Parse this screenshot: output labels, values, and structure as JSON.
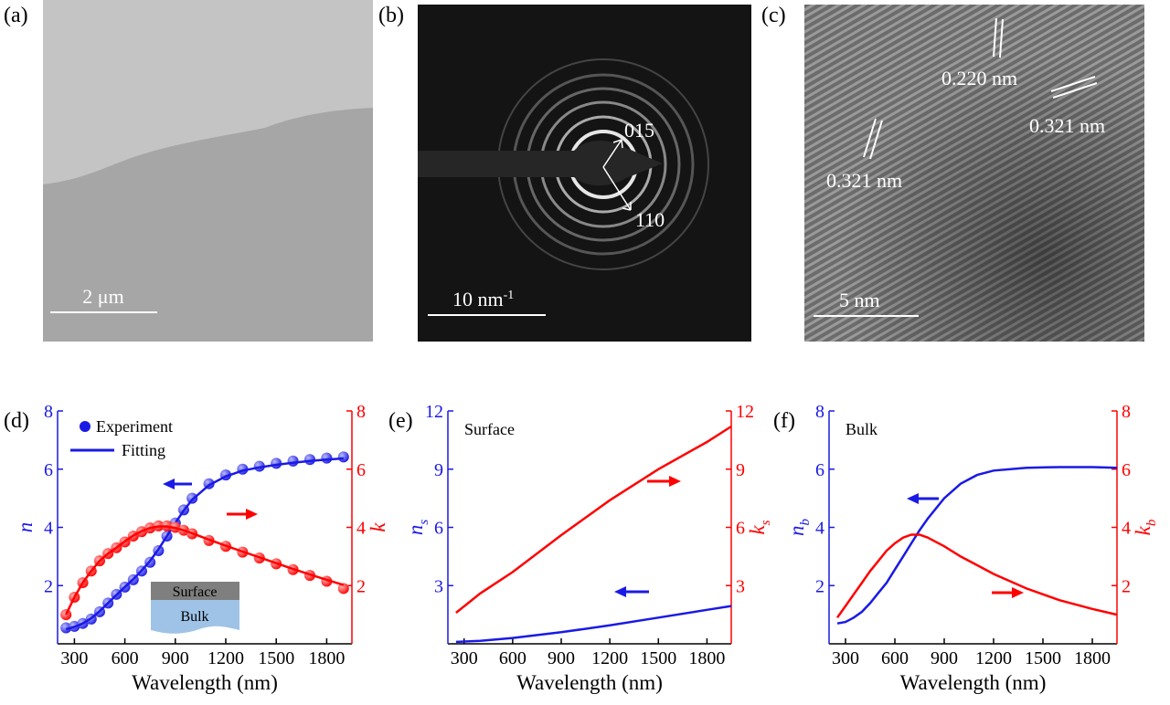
{
  "panels": [
    {
      "label": "(a)",
      "scale_bar": "2 μm"
    },
    {
      "label": "(b)",
      "scale_bar": "10 nm",
      "scale_bar_sup": "-1",
      "spots": [
        "015",
        "110"
      ]
    },
    {
      "label": "(c)",
      "scale_bar": "5 nm",
      "spacings": [
        "0.220 nm",
        "0.321 nm",
        "0.321 nm"
      ]
    }
  ],
  "chart_data": [
    {
      "type": "line",
      "panel_label": "(d)",
      "xlabel": "Wavelength (nm)",
      "ylabel": "n",
      "y2label": "k",
      "y_color": "#1a1ae6",
      "y2_color": "#ff0000",
      "xlim": [
        200,
        1950
      ],
      "xticks": [
        300,
        600,
        900,
        1200,
        1500,
        1800
      ],
      "ylim": [
        0,
        8
      ],
      "yticks": [
        2,
        4,
        6,
        8
      ],
      "y2lim": [
        0,
        8
      ],
      "y2ticks": [
        2,
        4,
        6,
        8
      ],
      "legend": "upper left",
      "annotations": [
        "Surface",
        "Bulk"
      ],
      "x": [
        250,
        300,
        350,
        400,
        450,
        500,
        550,
        600,
        650,
        700,
        750,
        800,
        850,
        900,
        950,
        1000,
        1100,
        1200,
        1300,
        1400,
        1500,
        1600,
        1700,
        1800,
        1900
      ],
      "series": [
        {
          "name": "Experiment",
          "style": "markers",
          "color": "#1a1ae6",
          "values": [
            0.55,
            0.6,
            0.7,
            0.85,
            1.1,
            1.4,
            1.7,
            1.95,
            2.2,
            2.5,
            2.8,
            3.2,
            3.7,
            4.15,
            4.6,
            5.0,
            5.5,
            5.8,
            6.0,
            6.1,
            6.2,
            6.28,
            6.33,
            6.38,
            6.42
          ]
        },
        {
          "name": "Fitting",
          "style": "line",
          "color": "#1a1ae6",
          "values": [
            0.5,
            0.58,
            0.7,
            0.88,
            1.12,
            1.4,
            1.68,
            1.95,
            2.22,
            2.52,
            2.85,
            3.25,
            3.7,
            4.15,
            4.58,
            4.95,
            5.45,
            5.75,
            5.95,
            6.06,
            6.15,
            6.22,
            6.28,
            6.33,
            6.37
          ]
        },
        {
          "style": "markers",
          "color": "#ff0000",
          "axis": "y2",
          "values": [
            1.0,
            1.6,
            2.1,
            2.5,
            2.85,
            3.1,
            3.3,
            3.5,
            3.7,
            3.85,
            3.98,
            4.05,
            4.05,
            4.0,
            3.9,
            3.78,
            3.55,
            3.35,
            3.15,
            2.95,
            2.75,
            2.55,
            2.35,
            2.15,
            1.9
          ]
        },
        {
          "style": "line",
          "color": "#ff0000",
          "axis": "y2",
          "values": [
            1.0,
            1.6,
            2.1,
            2.5,
            2.85,
            3.1,
            3.3,
            3.52,
            3.72,
            3.87,
            3.98,
            4.03,
            4.03,
            3.98,
            3.9,
            3.8,
            3.58,
            3.37,
            3.17,
            2.97,
            2.77,
            2.57,
            2.38,
            2.2,
            2.02
          ]
        }
      ]
    },
    {
      "type": "line",
      "panel_label": "(e)",
      "xlabel": "Wavelength (nm)",
      "ylabel": "n",
      "ylabel_sub": "s",
      "y2label": "k",
      "y2label_sub": "s",
      "y_color": "#1a1ae6",
      "y2_color": "#ff0000",
      "annotation": "Surface",
      "xlim": [
        200,
        1950
      ],
      "xticks": [
        300,
        600,
        900,
        1200,
        1500,
        1800
      ],
      "ylim": [
        0,
        12
      ],
      "yticks": [
        3,
        6,
        9,
        12
      ],
      "y2lim": [
        0,
        12
      ],
      "y2ticks": [
        3,
        6,
        9,
        12
      ],
      "x": [
        250,
        400,
        600,
        900,
        1200,
        1500,
        1800,
        1950
      ],
      "series": [
        {
          "style": "line",
          "color": "#1a1ae6",
          "values": [
            0.1,
            0.15,
            0.3,
            0.6,
            0.95,
            1.35,
            1.75,
            1.95
          ]
        },
        {
          "style": "line",
          "color": "#ff0000",
          "axis": "y2",
          "values": [
            1.6,
            2.6,
            3.7,
            5.6,
            7.4,
            9.0,
            10.4,
            11.2
          ]
        }
      ]
    },
    {
      "type": "line",
      "panel_label": "(f)",
      "xlabel": "Wavelength (nm)",
      "ylabel": "n",
      "ylabel_sub": "b",
      "y2label": "k",
      "y2label_sub": "b",
      "y_color": "#1a1ae6",
      "y2_color": "#ff0000",
      "annotation": "Bulk",
      "xlim": [
        200,
        1950
      ],
      "xticks": [
        300,
        600,
        900,
        1200,
        1500,
        1800
      ],
      "ylim": [
        0,
        8
      ],
      "yticks": [
        2,
        4,
        6,
        8
      ],
      "y2lim": [
        0,
        8
      ],
      "y2ticks": [
        2,
        4,
        6,
        8
      ],
      "x": [
        250,
        300,
        350,
        400,
        450,
        500,
        550,
        600,
        650,
        700,
        750,
        800,
        900,
        1000,
        1100,
        1200,
        1400,
        1600,
        1800,
        1950
      ],
      "series": [
        {
          "style": "line",
          "color": "#1a1ae6",
          "values": [
            0.7,
            0.75,
            0.9,
            1.1,
            1.4,
            1.75,
            2.1,
            2.55,
            3.0,
            3.45,
            3.9,
            4.3,
            5.0,
            5.5,
            5.8,
            5.95,
            6.05,
            6.07,
            6.07,
            6.05
          ]
        },
        {
          "style": "line",
          "color": "#ff0000",
          "axis": "y2",
          "values": [
            0.9,
            1.3,
            1.7,
            2.1,
            2.5,
            2.85,
            3.2,
            3.45,
            3.65,
            3.75,
            3.75,
            3.65,
            3.35,
            3.0,
            2.7,
            2.4,
            1.9,
            1.5,
            1.2,
            1.0
          ]
        }
      ]
    }
  ]
}
